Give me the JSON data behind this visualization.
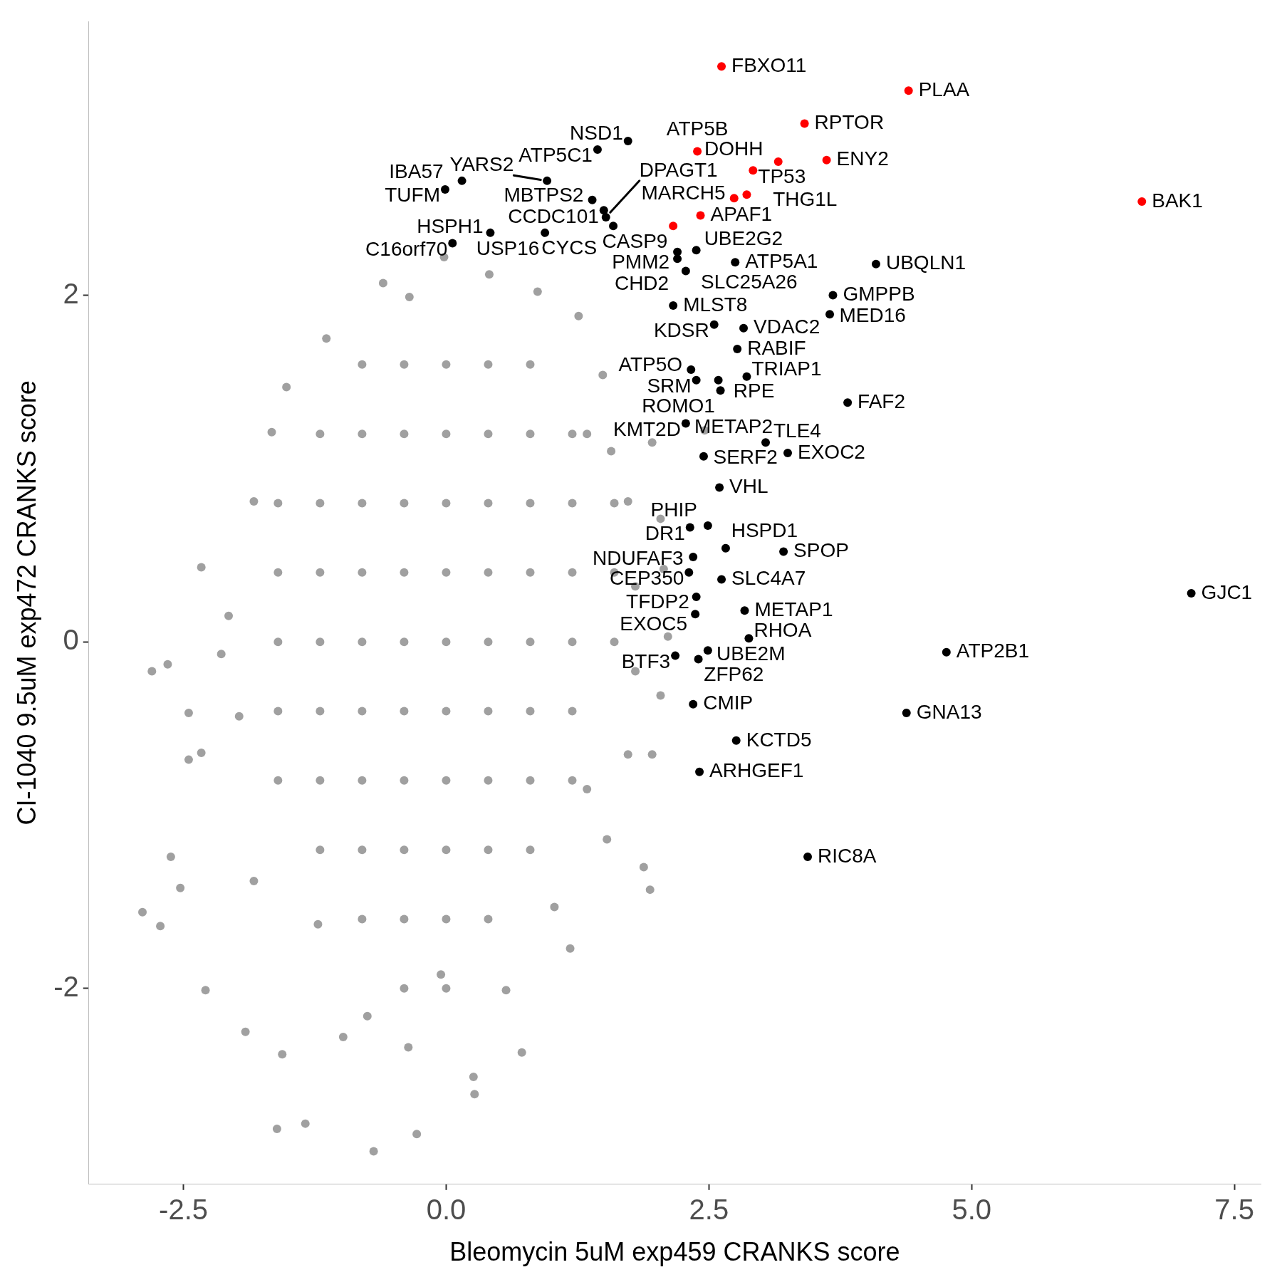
{
  "chart_data": {
    "type": "scatter",
    "xlabel": "Bleomycin 5uM exp459 CRANKS score",
    "ylabel": "CI-1040 9.5uM exp472 CRANKS score",
    "xlim": [
      -3.4,
      7.75
    ],
    "xticks": [
      -2.5,
      {
        "value": 0,
        "label": "0.0"
      },
      2.5,
      {
        "value": 5,
        "label": "5.0"
      },
      7.5
    ],
    "ylim": [
      -3.13,
      3.58
    ],
    "yticks": [
      -2,
      0,
      2
    ],
    "marker": "circle",
    "series": [
      {
        "color": "#a0a0a0",
        "x": [
          -2.8,
          -2.65,
          -2.89,
          -2.72,
          -2.62,
          -2.53,
          -2.45,
          -2.33,
          -2.33,
          -2.29,
          -1.91,
          -1.61,
          -1.34,
          -0.69,
          -0.28,
          0.27,
          0.72,
          0.26,
          1.94,
          1.88,
          -1.14,
          -0.6,
          -0.35,
          -0.02,
          -1.52,
          -1.66,
          -1.83,
          -2.07,
          -1.97,
          -1.56,
          -0.98,
          -0.36,
          0.57,
          1.18,
          1.53,
          1.73,
          1.8,
          1.8,
          1.73,
          1.49,
          1.26,
          0.87,
          0.41,
          1.57,
          1.96,
          2.04,
          2.07,
          2.11,
          2.04,
          1.96,
          2.46,
          1.34,
          -2.45,
          -2.14,
          -1.83,
          -1.22,
          -0.75,
          -0.05,
          1.03,
          1.34,
          -0.8,
          -0.4,
          0,
          0.4,
          0.8,
          -1.2,
          -0.8,
          -0.4,
          0,
          0.4,
          0.8,
          1.2,
          -1.6,
          -1.2,
          -0.8,
          -0.4,
          0,
          0.4,
          0.8,
          1.2,
          1.6,
          -1.6,
          -1.2,
          -0.8,
          -0.4,
          0,
          0.4,
          0.8,
          1.2,
          1.6,
          -1.6,
          -1.2,
          -0.8,
          -0.4,
          0,
          0.4,
          0.8,
          1.2,
          1.6,
          -1.6,
          -1.2,
          -0.8,
          -0.4,
          0,
          0.4,
          0.8,
          1.2,
          -1.6,
          -1.2,
          -0.8,
          -0.4,
          0,
          0.4,
          0.8,
          1.2,
          -1.2,
          -0.8,
          -0.4,
          0,
          0.4,
          0.8,
          -0.8,
          -0.4,
          0,
          0.4,
          -0.4,
          0
        ],
        "values": [
          -0.17,
          -0.13,
          -1.56,
          -1.64,
          -1.24,
          -1.42,
          -0.68,
          0.43,
          -0.64,
          -2.01,
          -2.25,
          -2.81,
          -2.78,
          -2.94,
          -2.84,
          -2.61,
          -2.37,
          -2.51,
          -1.43,
          -1.3,
          1.75,
          2.07,
          1.99,
          2.22,
          1.47,
          1.21,
          0.81,
          0.15,
          -0.43,
          -2.38,
          -2.28,
          -2.34,
          -2.01,
          -1.77,
          -1.14,
          -0.65,
          -0.17,
          0.32,
          0.81,
          1.54,
          1.88,
          2.02,
          2.12,
          1.1,
          1.15,
          0.71,
          0.42,
          0.03,
          -0.31,
          -0.65,
          1.22,
          1.2,
          -0.41,
          -0.07,
          -1.38,
          -1.63,
          -2.16,
          -1.92,
          -1.53,
          -0.85,
          1.6,
          1.6,
          1.6,
          1.6,
          1.6,
          1.2,
          1.2,
          1.2,
          1.2,
          1.2,
          1.2,
          1.2,
          0.8,
          0.8,
          0.8,
          0.8,
          0.8,
          0.8,
          0.8,
          0.8,
          0.8,
          0.4,
          0.4,
          0.4,
          0.4,
          0.4,
          0.4,
          0.4,
          0.4,
          0.4,
          0,
          0,
          0,
          0,
          0,
          0,
          0,
          0,
          0,
          -0.4,
          -0.4,
          -0.4,
          -0.4,
          -0.4,
          -0.4,
          -0.4,
          -0.4,
          -0.8,
          -0.8,
          -0.8,
          -0.8,
          -0.8,
          -0.8,
          -0.8,
          -0.8,
          -1.2,
          -1.2,
          -1.2,
          -1.2,
          -1.2,
          -1.2,
          -1.6,
          -1.6,
          -1.6,
          -1.6,
          -2,
          -2
        ]
      },
      {
        "color": "#000000",
        "x": [
          1.44,
          1.73,
          1.39,
          1.5,
          1.52,
          1.59,
          0.96,
          0.15,
          -0.01,
          0.42,
          0.94,
          0.06,
          2.2,
          2.2,
          2.38,
          2.28,
          2.16,
          2.55,
          2.75,
          2.83,
          2.77,
          2.33,
          2.38,
          2.59,
          2.86,
          2.61,
          4.09,
          3.68,
          3.65,
          3.82,
          3.04,
          3.25,
          2.28,
          2.45,
          2.6,
          2.32,
          2.49,
          2.66,
          3.21,
          2.35,
          2.31,
          2.62,
          2.38,
          2.84,
          2.37,
          2.88,
          2.49,
          2.4,
          2.18,
          2.35,
          2.76,
          2.41,
          4.38,
          4.76,
          3.44,
          7.09
        ],
        "values": [
          2.84,
          2.89,
          2.55,
          2.49,
          2.45,
          2.4,
          2.66,
          2.66,
          2.61,
          2.36,
          2.36,
          2.3,
          2.25,
          2.21,
          2.26,
          2.14,
          1.94,
          1.83,
          2.19,
          1.81,
          1.69,
          1.57,
          1.51,
          1.51,
          1.53,
          1.45,
          2.18,
          2.0,
          1.89,
          1.38,
          1.15,
          1.09,
          1.26,
          1.07,
          0.89,
          0.66,
          0.67,
          0.54,
          0.52,
          0.49,
          0.4,
          0.36,
          0.26,
          0.18,
          0.16,
          0.02,
          -0.05,
          -0.1,
          -0.08,
          -0.36,
          -0.57,
          -0.75,
          -0.41,
          -0.06,
          -1.24,
          0.28
        ]
      },
      {
        "color": "#ff0000",
        "x": [
          2.62,
          4.4,
          6.62,
          3.41,
          3.16,
          3.62,
          2.39,
          2.92,
          2.86,
          2.74,
          2.42,
          2.16
        ],
        "values": [
          3.32,
          3.18,
          2.54,
          2.99,
          2.77,
          2.78,
          2.83,
          2.72,
          2.58,
          2.56,
          2.46,
          2.4
        ]
      }
    ],
    "annotations": [
      {
        "text": "FBXO11",
        "x": 2.62,
        "y": 3.32
      },
      {
        "text": "PLAA",
        "x": 4.4,
        "y": 3.18
      },
      {
        "text": "BAK1",
        "x": 6.62,
        "y": 2.54
      },
      {
        "text": "RPTOR",
        "x": 3.41,
        "y": 2.99
      },
      {
        "text": "DOHH",
        "x": 3.16,
        "y": 2.77
      },
      {
        "text": "ENY2",
        "x": 3.62,
        "y": 2.78
      },
      {
        "text": "ATP5B",
        "x": 2.39,
        "y": 2.83
      },
      {
        "text": "TP53",
        "x": 2.92,
        "y": 2.72
      },
      {
        "text": "THG1L",
        "x": 2.86,
        "y": 2.58
      },
      {
        "text": "MARCH5",
        "x": 2.74,
        "y": 2.56
      },
      {
        "text": "APAF1",
        "x": 2.42,
        "y": 2.46
      },
      {
        "text": "CASP9",
        "x": 2.16,
        "y": 2.4
      },
      {
        "text": "ATP5C1",
        "x": 1.44,
        "y": 2.84
      },
      {
        "text": "NSD1",
        "x": 1.73,
        "y": 2.89
      },
      {
        "text": "MBTPS2",
        "x": 1.39,
        "y": 2.55
      },
      {
        "text": "CCDC101",
        "x": 1.5,
        "y": 2.49
      },
      {
        "text": "DPAGT1",
        "x": 1.52,
        "y": 2.45
      },
      {
        "text": "CYCS",
        "x": 1.59,
        "y": 2.4
      },
      {
        "text": "YARS2",
        "x": 0.96,
        "y": 2.66
      },
      {
        "text": "IBA57",
        "x": 0.15,
        "y": 2.66
      },
      {
        "text": "TUFM",
        "x": -0.01,
        "y": 2.61
      },
      {
        "text": "HSPH1",
        "x": 0.42,
        "y": 2.36
      },
      {
        "text": "USP16",
        "x": 0.94,
        "y": 2.36
      },
      {
        "text": "C16orf70",
        "x": 0.06,
        "y": 2.3
      },
      {
        "text": "PMM2",
        "x": 2.2,
        "y": 2.25
      },
      {
        "text": "CHD2",
        "x": 2.2,
        "y": 2.21
      },
      {
        "text": "UBE2G2",
        "x": 2.38,
        "y": 2.26
      },
      {
        "text": "SLC25A26",
        "x": 2.28,
        "y": 2.14
      },
      {
        "text": "MLST8",
        "x": 2.16,
        "y": 1.94
      },
      {
        "text": "KDSR",
        "x": 2.55,
        "y": 1.83
      },
      {
        "text": "ATP5A1",
        "x": 2.75,
        "y": 2.19
      },
      {
        "text": "VDAC2",
        "x": 2.83,
        "y": 1.81
      },
      {
        "text": "RABIF",
        "x": 2.77,
        "y": 1.69
      },
      {
        "text": "ATP5O",
        "x": 2.33,
        "y": 1.57
      },
      {
        "text": "SRM",
        "x": 2.38,
        "y": 1.51
      },
      {
        "text": "RPE",
        "x": 2.59,
        "y": 1.51
      },
      {
        "text": "TRIAP1",
        "x": 2.86,
        "y": 1.53
      },
      {
        "text": "ROMO1",
        "x": 2.61,
        "y": 1.45
      },
      {
        "text": "UBQLN1",
        "x": 4.09,
        "y": 2.18
      },
      {
        "text": "GMPPB",
        "x": 3.68,
        "y": 2.0
      },
      {
        "text": "MED16",
        "x": 3.65,
        "y": 1.89
      },
      {
        "text": "FAF2",
        "x": 3.82,
        "y": 1.38
      },
      {
        "text": "TLE4",
        "x": 3.04,
        "y": 1.15
      },
      {
        "text": "EXOC2",
        "x": 3.25,
        "y": 1.09
      },
      {
        "text": "METAP2",
        "x": 2.28,
        "y": 1.26
      },
      {
        "text": "KMT2D",
        "x": 2.28,
        "y": 1.26
      },
      {
        "text": "SERF2",
        "x": 2.45,
        "y": 1.07
      },
      {
        "text": "VHL",
        "x": 2.6,
        "y": 0.89
      },
      {
        "text": "DR1",
        "x": 2.32,
        "y": 0.66
      },
      {
        "text": "PHIP",
        "x": 2.49,
        "y": 0.67
      },
      {
        "text": "HSPD1",
        "x": 2.66,
        "y": 0.54
      },
      {
        "text": "SPOP",
        "x": 3.21,
        "y": 0.52
      },
      {
        "text": "NDUFAF3",
        "x": 2.35,
        "y": 0.49
      },
      {
        "text": "CEP350",
        "x": 2.31,
        "y": 0.4
      },
      {
        "text": "SLC4A7",
        "x": 2.62,
        "y": 0.36
      },
      {
        "text": "TFDP2",
        "x": 2.38,
        "y": 0.26
      },
      {
        "text": "METAP1",
        "x": 2.84,
        "y": 0.18
      },
      {
        "text": "EXOC5",
        "x": 2.37,
        "y": 0.16
      },
      {
        "text": "RHOA",
        "x": 2.88,
        "y": 0.02
      },
      {
        "text": "UBE2M",
        "x": 2.49,
        "y": -0.05
      },
      {
        "text": "ZFP62",
        "x": 2.4,
        "y": -0.1
      },
      {
        "text": "BTF3",
        "x": 2.18,
        "y": -0.08
      },
      {
        "text": "CMIP",
        "x": 2.35,
        "y": -0.36
      },
      {
        "text": "KCTD5",
        "x": 2.76,
        "y": -0.57
      },
      {
        "text": "ARHGEF1",
        "x": 2.41,
        "y": -0.75
      },
      {
        "text": "GNA13",
        "x": 4.38,
        "y": -0.41
      },
      {
        "text": "ATP2B1",
        "x": 4.76,
        "y": -0.06
      },
      {
        "text": "RIC8A",
        "x": 3.44,
        "y": -1.24
      },
      {
        "text": "GJC1",
        "x": 7.09,
        "y": 0.28
      }
    ]
  }
}
